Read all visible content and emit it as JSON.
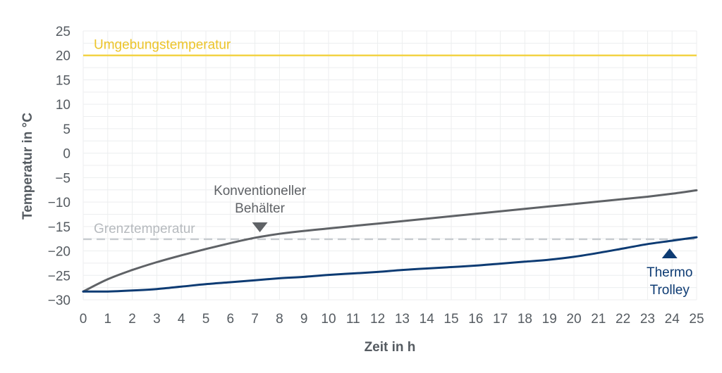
{
  "chart_data": {
    "type": "line",
    "title": "",
    "xlabel": "Zeit in h",
    "ylabel": "Temperatur in °C",
    "xlim": [
      0,
      25
    ],
    "ylim": [
      -30,
      25
    ],
    "x_ticks": [
      0,
      1,
      2,
      3,
      4,
      5,
      6,
      7,
      8,
      9,
      10,
      11,
      12,
      13,
      14,
      15,
      16,
      17,
      18,
      19,
      20,
      21,
      22,
      23,
      24,
      25
    ],
    "y_ticks": [
      25,
      20,
      15,
      10,
      5,
      0,
      -5,
      -10,
      -15,
      -20,
      -25,
      -30
    ],
    "grid": true,
    "series": [
      {
        "name": "Konventioneller Behälter",
        "color": "#5f6266",
        "x": [
          0,
          1,
          2,
          3,
          4,
          5,
          6,
          7,
          8,
          9,
          10,
          11,
          12,
          13,
          14,
          15,
          16,
          17,
          18,
          19,
          20,
          21,
          22,
          23,
          24,
          25
        ],
        "y": [
          -28.3,
          -25.8,
          -23.9,
          -22.3,
          -20.9,
          -19.6,
          -18.4,
          -17.3,
          -16.5,
          -15.9,
          -15.4,
          -14.9,
          -14.4,
          -13.9,
          -13.4,
          -12.9,
          -12.4,
          -11.9,
          -11.4,
          -10.9,
          -10.4,
          -9.9,
          -9.4,
          -8.9,
          -8.3,
          -7.6
        ]
      },
      {
        "name": "Thermo Trolley",
        "color": "#0d3b73",
        "x": [
          0,
          1,
          2,
          3,
          4,
          5,
          6,
          7,
          8,
          9,
          10,
          11,
          12,
          13,
          14,
          15,
          16,
          17,
          18,
          19,
          20,
          21,
          22,
          23,
          24,
          25
        ],
        "y": [
          -28.3,
          -28.3,
          -28.1,
          -27.8,
          -27.3,
          -26.8,
          -26.4,
          -26.0,
          -25.6,
          -25.3,
          -24.9,
          -24.6,
          -24.3,
          -23.9,
          -23.6,
          -23.3,
          -23.0,
          -22.6,
          -22.2,
          -21.8,
          -21.2,
          -20.4,
          -19.5,
          -18.6,
          -17.9,
          -17.2
        ]
      }
    ],
    "reference_lines": [
      {
        "name": "Umgebungstemperatur",
        "y": 20,
        "color": "#f3d346",
        "style": "solid"
      },
      {
        "name": "Grenztemperatur",
        "y": -17.6,
        "color": "#c8ccd0",
        "style": "dashed"
      }
    ],
    "annotations": [
      {
        "label_lines": [
          "Konventioneller",
          "Behälter"
        ],
        "x": 7.2,
        "color": "#5f6266",
        "marker": "triangle-down"
      },
      {
        "label_lines": [
          "Thermo",
          "Trolley"
        ],
        "x": 23.9,
        "color": "#0d3b73",
        "marker": "triangle-up"
      }
    ],
    "colors": {
      "grid": "#eceeef",
      "tick_text": "#555b61",
      "background": "#ffffff"
    }
  }
}
